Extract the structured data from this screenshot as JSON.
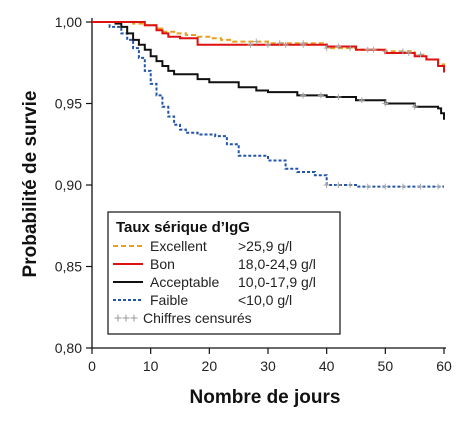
{
  "chart_data": {
    "type": "line",
    "xlabel": "Nombre de jours",
    "ylabel": "Probabilité de survie",
    "xlim": [
      0,
      60
    ],
    "ylim": [
      0.8,
      1.0
    ],
    "x_ticks": [
      0,
      10,
      20,
      30,
      40,
      50,
      60
    ],
    "x_tick_labels": [
      "0",
      "10",
      "20",
      "30",
      "40",
      "50",
      "60"
    ],
    "y_ticks": [
      0.8,
      0.85,
      0.9,
      0.95,
      1.0
    ],
    "y_tick_labels": [
      "0,80",
      "0,85",
      "0,90",
      "0,95",
      "1,00"
    ],
    "grid": false,
    "legend": {
      "title": "Taux sérique d’IgG",
      "placement": "bottom-left",
      "entries": [
        {
          "label": "Excellent",
          "range": ">25,9 g/l",
          "style": "dashed",
          "color": "#e8a020"
        },
        {
          "label": "Bon",
          "range": "18,0-24,9 g/l",
          "style": "solid",
          "color": "#dd1111"
        },
        {
          "label": "Acceptable",
          "range": "10,0-17,9 g/l",
          "style": "solid",
          "color": "#111111"
        },
        {
          "label": "Faible",
          "range": "<10,0 g/l",
          "style": "dotted",
          "color": "#2255aa"
        },
        {
          "label": "Chiffres censurés",
          "range": "",
          "style": "plus",
          "color": "#999999"
        }
      ]
    },
    "series": [
      {
        "name": "Excellent",
        "color": "#e8a020",
        "style": "dashed",
        "x": [
          0,
          5,
          7,
          9,
          11,
          12,
          14,
          16,
          18,
          20,
          22,
          24,
          26,
          30,
          35,
          40,
          45,
          50,
          55,
          57,
          59,
          60
        ],
        "y": [
          1.0,
          1.0,
          0.999,
          0.998,
          0.996,
          0.994,
          0.993,
          0.992,
          0.991,
          0.99,
          0.989,
          0.988,
          0.988,
          0.987,
          0.987,
          0.984,
          0.983,
          0.982,
          0.98,
          0.977,
          0.974,
          0.972
        ]
      },
      {
        "name": "Bon",
        "color": "#dd1111",
        "style": "solid",
        "x": [
          0,
          7,
          9,
          11,
          12,
          13,
          15,
          18,
          30,
          40,
          45,
          50,
          55,
          57,
          59,
          60
        ],
        "y": [
          1.0,
          1.0,
          0.998,
          0.995,
          0.993,
          0.991,
          0.99,
          0.986,
          0.986,
          0.985,
          0.983,
          0.981,
          0.979,
          0.977,
          0.973,
          0.969
        ]
      },
      {
        "name": "Acceptable",
        "color": "#111111",
        "style": "solid",
        "x": [
          0,
          4,
          5,
          6,
          7,
          8,
          9,
          10,
          11,
          12,
          13,
          14,
          18,
          20,
          25,
          28,
          30,
          35,
          40,
          45,
          50,
          55,
          59,
          59.5,
          60
        ],
        "y": [
          1.0,
          0.999,
          0.997,
          0.993,
          0.989,
          0.986,
          0.983,
          0.979,
          0.976,
          0.973,
          0.97,
          0.968,
          0.965,
          0.963,
          0.96,
          0.958,
          0.957,
          0.955,
          0.954,
          0.952,
          0.95,
          0.948,
          0.947,
          0.944,
          0.94
        ]
      },
      {
        "name": "Faible",
        "color": "#2255aa",
        "style": "dotted",
        "x": [
          0,
          3,
          5,
          6,
          7,
          8,
          9,
          10,
          11,
          12,
          13,
          14,
          15,
          16,
          18,
          21,
          23,
          25,
          30,
          33,
          35,
          38,
          40,
          45,
          50,
          55,
          60
        ],
        "y": [
          1.0,
          0.997,
          0.993,
          0.989,
          0.984,
          0.978,
          0.97,
          0.962,
          0.955,
          0.948,
          0.942,
          0.937,
          0.934,
          0.932,
          0.931,
          0.93,
          0.925,
          0.918,
          0.915,
          0.91,
          0.908,
          0.906,
          0.9,
          0.899,
          0.899,
          0.899,
          0.899
        ]
      }
    ]
  }
}
